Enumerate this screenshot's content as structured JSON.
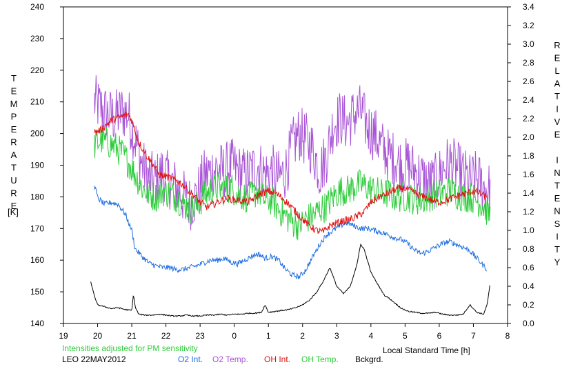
{
  "chart_data": {
    "type": "line",
    "title": "",
    "xlabel": "Local Standard Time [h]",
    "ylabel_left": "TEMPERATURE",
    "ylabel_left_unit": "[K]",
    "ylabel_right": "RELATIVE INTENSITY",
    "x_ticks": [
      "19",
      "20",
      "21",
      "22",
      "23",
      "0",
      "1",
      "2",
      "3",
      "4",
      "5",
      "6",
      "7",
      "8"
    ],
    "xlim": [
      19,
      32
    ],
    "ylim_left": [
      140,
      240
    ],
    "yticks_left": [
      140,
      150,
      160,
      170,
      180,
      190,
      200,
      210,
      220,
      230,
      240
    ],
    "ylim_right": [
      0.0,
      3.4
    ],
    "yticks_right": [
      "0.0",
      "0.2",
      "0.4",
      "0.6",
      "0.8",
      "1.0",
      "1.2",
      "1.4",
      "1.6",
      "1.8",
      "2.0",
      "2.2",
      "2.4",
      "2.6",
      "2.8",
      "3.0",
      "3.2",
      "3.4"
    ],
    "grid": false,
    "annotation": "Intensities adjusted for PM sensitivity",
    "site_date": "LEO 22MAY2012",
    "legend": [
      {
        "label": "O2 Int.",
        "color": "#1f6fe0"
      },
      {
        "label": "O2 Temp.",
        "color": "#a855d6"
      },
      {
        "label": "OH Int.",
        "color": "#e01010"
      },
      {
        "label": "OH Temp.",
        "color": "#2ecc3c"
      },
      {
        "label": "Bckgrd.",
        "color": "#000000"
      }
    ],
    "series": [
      {
        "name": "O2 Temp.",
        "axis": "left",
        "color": "#a855d6",
        "x": [
          19.9,
          20.1,
          20.3,
          20.5,
          20.7,
          20.9,
          21.1,
          21.3,
          21.5,
          21.7,
          21.9,
          22.1,
          22.3,
          22.5,
          22.7,
          22.9,
          23.1,
          23.3,
          23.5,
          23.7,
          23.9,
          24.1,
          24.3,
          24.5,
          24.7,
          24.9,
          25.1,
          25.3,
          25.5,
          25.7,
          25.9,
          26.1,
          26.3,
          26.5,
          26.7,
          26.9,
          27.1,
          27.3,
          27.5,
          27.7,
          27.9,
          28.1,
          28.3,
          28.5,
          28.7,
          28.9,
          29.1,
          29.3,
          29.5,
          29.7,
          29.9,
          30.1,
          30.3,
          30.5,
          30.7,
          30.9,
          31.1,
          31.3,
          31.5
        ],
        "y": [
          210,
          208,
          206,
          205,
          207,
          206,
          198,
          190,
          186,
          185,
          188,
          185,
          183,
          180,
          178,
          180,
          186,
          188,
          189,
          188,
          190,
          188,
          187,
          188,
          190,
          187,
          188,
          186,
          188,
          196,
          200,
          198,
          195,
          188,
          193,
          203,
          205,
          203,
          206,
          207,
          202,
          200,
          196,
          193,
          192,
          190,
          190,
          188,
          186,
          184,
          185,
          189,
          191,
          189,
          187,
          185,
          186,
          183,
          182
        ],
        "jitter": 9
      },
      {
        "name": "OH Temp.",
        "axis": "left",
        "color": "#2ecc3c",
        "x": [
          19.9,
          20.1,
          20.3,
          20.5,
          20.7,
          20.9,
          21.1,
          21.3,
          21.5,
          21.7,
          21.9,
          22.1,
          22.3,
          22.5,
          22.7,
          22.9,
          23.1,
          23.3,
          23.5,
          23.7,
          23.9,
          24.1,
          24.3,
          24.5,
          24.7,
          24.9,
          25.1,
          25.3,
          25.5,
          25.7,
          25.9,
          26.1,
          26.3,
          26.5,
          26.7,
          26.9,
          27.1,
          27.3,
          27.5,
          27.7,
          27.9,
          28.1,
          28.3,
          28.5,
          28.7,
          28.9,
          29.1,
          29.3,
          29.5,
          29.7,
          29.9,
          30.1,
          30.3,
          30.5,
          30.7,
          30.9,
          31.1,
          31.3,
          31.5
        ],
        "y": [
          196,
          198,
          197,
          196,
          194,
          191,
          187,
          183,
          181,
          180,
          182,
          181,
          180,
          178,
          176,
          177,
          180,
          182,
          183,
          182,
          183,
          181,
          180,
          180,
          182,
          179,
          179,
          176,
          174,
          172,
          171,
          173,
          174,
          176,
          177,
          180,
          182,
          182,
          183,
          184,
          183,
          182,
          181,
          181,
          180,
          180,
          180,
          179,
          179,
          180,
          181,
          181,
          182,
          181,
          180,
          180,
          179,
          177,
          174
        ],
        "jitter": 5
      },
      {
        "name": "OH Int.",
        "axis": "right",
        "color": "#e01010",
        "x": [
          19.9,
          20.1,
          20.3,
          20.5,
          20.7,
          20.9,
          21.0,
          21.2,
          21.4,
          21.6,
          21.8,
          22.0,
          22.2,
          22.4,
          22.6,
          22.8,
          23.0,
          23.2,
          23.4,
          23.6,
          23.8,
          24.0,
          24.2,
          24.4,
          24.6,
          24.8,
          25.0,
          25.2,
          25.4,
          25.6,
          25.8,
          26.0,
          26.2,
          26.4,
          26.6,
          26.8,
          27.0,
          27.2,
          27.4,
          27.6,
          27.8,
          28.0,
          28.2,
          28.4,
          28.6,
          28.8,
          29.0,
          29.2,
          29.4,
          29.6,
          29.8,
          30.0,
          30.2,
          30.4,
          30.6,
          30.8,
          31.0,
          31.2,
          31.4
        ],
        "y": [
          2.05,
          2.08,
          2.15,
          2.2,
          2.22,
          2.25,
          2.18,
          1.95,
          1.82,
          1.72,
          1.6,
          1.58,
          1.55,
          1.52,
          1.45,
          1.38,
          1.3,
          1.25,
          1.28,
          1.32,
          1.34,
          1.33,
          1.32,
          1.3,
          1.35,
          1.4,
          1.42,
          1.4,
          1.35,
          1.28,
          1.2,
          1.12,
          1.05,
          1.0,
          0.98,
          1.05,
          1.08,
          1.1,
          1.12,
          1.15,
          1.2,
          1.3,
          1.35,
          1.38,
          1.42,
          1.45,
          1.45,
          1.42,
          1.38,
          1.35,
          1.32,
          1.3,
          1.32,
          1.35,
          1.38,
          1.4,
          1.42,
          1.4,
          1.35
        ],
        "jitter": 0.04
      },
      {
        "name": "O2 Int.",
        "axis": "right",
        "color": "#1f6fe0",
        "x": [
          19.9,
          20.0,
          20.2,
          20.4,
          20.6,
          20.8,
          21.0,
          21.1,
          21.3,
          21.5,
          21.7,
          21.9,
          22.1,
          22.3,
          22.5,
          22.7,
          22.9,
          23.1,
          23.3,
          23.5,
          23.7,
          23.9,
          24.1,
          24.3,
          24.5,
          24.7,
          24.9,
          25.1,
          25.3,
          25.5,
          25.7,
          25.9,
          26.1,
          26.3,
          26.5,
          26.7,
          26.9,
          27.1,
          27.3,
          27.5,
          27.7,
          27.9,
          28.1,
          28.3,
          28.5,
          28.7,
          28.9,
          29.1,
          29.3,
          29.5,
          29.7,
          29.9,
          30.1,
          30.3,
          30.5,
          30.7,
          30.9,
          31.1,
          31.3,
          31.4
        ],
        "y": [
          1.5,
          1.35,
          1.28,
          1.3,
          1.28,
          1.18,
          1.0,
          0.8,
          0.72,
          0.65,
          0.62,
          0.6,
          0.6,
          0.58,
          0.58,
          0.6,
          0.62,
          0.65,
          0.68,
          0.68,
          0.7,
          0.66,
          0.64,
          0.68,
          0.72,
          0.75,
          0.7,
          0.72,
          0.68,
          0.58,
          0.52,
          0.5,
          0.58,
          0.72,
          0.85,
          0.95,
          1.0,
          1.05,
          1.08,
          1.05,
          1.02,
          1.02,
          1.0,
          0.98,
          0.95,
          0.92,
          0.9,
          0.85,
          0.78,
          0.75,
          0.78,
          0.82,
          0.86,
          0.88,
          0.85,
          0.82,
          0.78,
          0.7,
          0.62,
          0.58
        ],
        "jitter": 0.03
      },
      {
        "name": "Bckgrd.",
        "axis": "right",
        "color": "#000000",
        "x": [
          19.8,
          19.9,
          20.0,
          20.2,
          20.4,
          20.6,
          20.8,
          21.0,
          21.05,
          21.1,
          21.2,
          21.4,
          21.6,
          21.8,
          22.0,
          22.2,
          22.4,
          22.6,
          22.8,
          23.0,
          23.2,
          23.4,
          23.6,
          23.8,
          24.0,
          24.2,
          24.4,
          24.6,
          24.8,
          24.9,
          25.0,
          25.2,
          25.4,
          25.6,
          25.8,
          26.0,
          26.2,
          26.4,
          26.6,
          26.8,
          27.0,
          27.2,
          27.4,
          27.6,
          27.7,
          27.8,
          28.0,
          28.2,
          28.4,
          28.5,
          28.7,
          28.9,
          29.1,
          29.3,
          29.5,
          29.7,
          29.9,
          30.1,
          30.3,
          30.5,
          30.7,
          30.9,
          31.1,
          31.3,
          31.4,
          31.5
        ],
        "y": [
          0.45,
          0.3,
          0.2,
          0.18,
          0.16,
          0.17,
          0.15,
          0.14,
          0.32,
          0.18,
          0.1,
          0.09,
          0.09,
          0.1,
          0.09,
          0.08,
          0.08,
          0.09,
          0.08,
          0.08,
          0.09,
          0.09,
          0.1,
          0.09,
          0.1,
          0.1,
          0.11,
          0.11,
          0.12,
          0.2,
          0.12,
          0.13,
          0.14,
          0.15,
          0.17,
          0.2,
          0.25,
          0.33,
          0.45,
          0.6,
          0.4,
          0.32,
          0.4,
          0.65,
          0.85,
          0.8,
          0.55,
          0.42,
          0.3,
          0.28,
          0.22,
          0.16,
          0.13,
          0.12,
          0.11,
          0.11,
          0.12,
          0.1,
          0.09,
          0.09,
          0.1,
          0.2,
          0.12,
          0.1,
          0.2,
          0.45
        ],
        "jitter": 0.006
      }
    ]
  }
}
